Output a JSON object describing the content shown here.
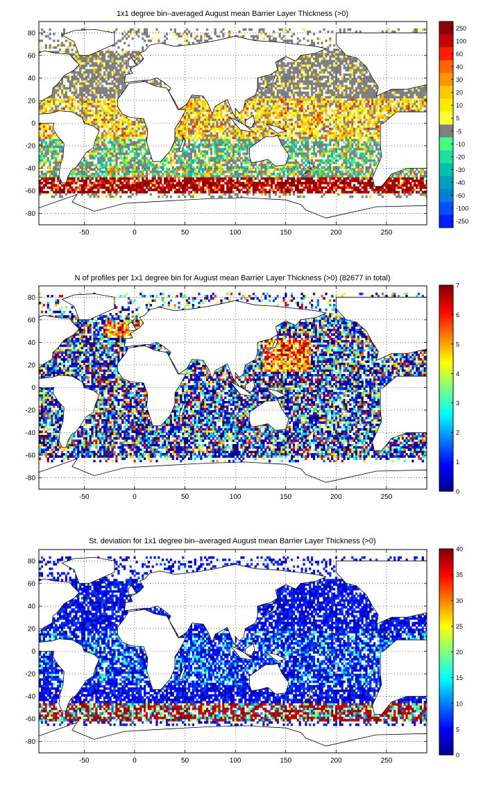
{
  "figure": {
    "panels": [
      {
        "title": "1x1 degree bin–averaged August mean Barrier Layer Thickness (>0)",
        "map": {
          "xlim": [
            -95,
            290
          ],
          "ylim": [
            -90,
            90
          ],
          "xticks": [
            "-50",
            "0",
            "50",
            "100",
            "150",
            "200",
            "250"
          ],
          "yticks": [
            "-80",
            "-60",
            "-40",
            "-20",
            "0",
            "20",
            "40",
            "60",
            "80"
          ]
        },
        "colorbar": {
          "type": "discrete",
          "tick_labels": [
            "250",
            "100",
            "60",
            "40",
            "30",
            "20",
            "10",
            "5",
            "-5",
            "-10",
            "-20",
            "-30",
            "-40",
            "-60",
            "-100",
            "-250"
          ],
          "colors": [
            "#8c0000",
            "#c80000",
            "#ff1e00",
            "#ff6400",
            "#ff9600",
            "#ffc800",
            "#ffeb00",
            "#ffff3c",
            "#808080",
            "#40ff80",
            "#20e0a0",
            "#00c0b0",
            "#00a0c0",
            "#0080d8",
            "#0050ff",
            "#0020ff"
          ]
        }
      },
      {
        "title": "N of profiles per 1x1 degree bin for August mean Barrier Layer Thickness (>0) (82677 in total)",
        "map": {
          "xlim": [
            -95,
            290
          ],
          "ylim": [
            -90,
            90
          ],
          "xticks": [
            "-50",
            "0",
            "50",
            "100",
            "150",
            "200",
            "250"
          ],
          "yticks": [
            "-80",
            "-60",
            "-40",
            "-20",
            "0",
            "20",
            "40",
            "60",
            "80"
          ]
        },
        "colorbar": {
          "type": "continuous",
          "range": [
            0,
            7
          ],
          "tick_labels": [
            "7",
            "6",
            "5",
            "4",
            "3",
            "2",
            "1",
            "0"
          ]
        }
      },
      {
        "title": "St. deviation for 1x1 degree bin–averaged August mean Barrier Layer Thickness (>0)",
        "map": {
          "xlim": [
            -95,
            290
          ],
          "ylim": [
            -90,
            90
          ],
          "xticks": [
            "-50",
            "0",
            "50",
            "100",
            "150",
            "200",
            "250"
          ],
          "yticks": [
            "-80",
            "-60",
            "-40",
            "-20",
            "0",
            "20",
            "40",
            "60",
            "80"
          ]
        },
        "colorbar": {
          "type": "continuous",
          "range": [
            0,
            40
          ],
          "tick_labels": [
            "40",
            "35",
            "30",
            "25",
            "20",
            "15",
            "10",
            "5",
            "0"
          ]
        }
      }
    ]
  }
}
